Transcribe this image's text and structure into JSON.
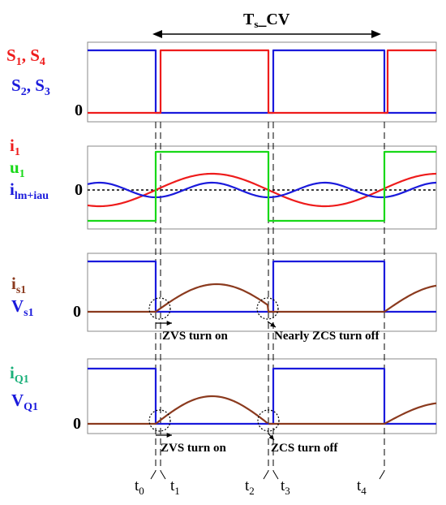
{
  "title": {
    "main": "T",
    "sub": "s",
    "rest": "_CV"
  },
  "colors": {
    "red": "#ee1c1c",
    "blue": "#1a1adc",
    "green": "#18d818",
    "brown": "#8b3a1e",
    "teal": "#1bb07a",
    "black": "#000000",
    "axis": "#555555"
  },
  "panels": [
    {
      "id": "switch-gates",
      "labels": [
        {
          "parts": [
            {
              "t": "S"
            },
            {
              "t": "1",
              "sub": true
            },
            {
              "t": ", S"
            },
            {
              "t": "4",
              "sub": true
            }
          ],
          "color": "red"
        },
        {
          "parts": [
            {
              "t": "S"
            },
            {
              "t": "2",
              "sub": true
            },
            {
              "t": ", S"
            },
            {
              "t": "3",
              "sub": true
            }
          ],
          "color": "blue"
        }
      ],
      "zero_label": "0"
    },
    {
      "id": "currents",
      "labels": [
        {
          "parts": [
            {
              "t": "i"
            },
            {
              "t": "1",
              "sub": true
            }
          ],
          "color": "red"
        },
        {
          "parts": [
            {
              "t": "u"
            },
            {
              "t": "1",
              "sub": true
            }
          ],
          "color": "green"
        },
        {
          "parts": [
            {
              "t": "i"
            },
            {
              "t": "lm",
              "sub": true
            },
            {
              "t": "+",
              "sub": true
            },
            {
              "t": "i",
              "sub": true
            },
            {
              "t": "au",
              "sub": true
            }
          ],
          "color": "blue"
        }
      ],
      "zero_label": "0"
    },
    {
      "id": "secondary",
      "labels": [
        {
          "parts": [
            {
              "t": "i"
            },
            {
              "t": "s1",
              "sub": true
            }
          ],
          "color": "brown"
        },
        {
          "parts": [
            {
              "t": "V"
            },
            {
              "t": "s1",
              "sub": true
            }
          ],
          "color": "blue"
        }
      ],
      "zero_label": "0",
      "annotations": [
        "ZVS turn on",
        "Nearly ZCS turn off"
      ]
    },
    {
      "id": "q1",
      "labels": [
        {
          "parts": [
            {
              "t": "i"
            },
            {
              "t": "Q1",
              "sub": true
            }
          ],
          "color": "teal"
        },
        {
          "parts": [
            {
              "t": "V"
            },
            {
              "t": "Q1",
              "sub": true
            }
          ],
          "color": "blue"
        }
      ],
      "zero_label": "0",
      "annotations": [
        "ZVS turn on",
        "ZCS turn off"
      ]
    }
  ],
  "time_labels": [
    {
      "main": "t",
      "sub": "0"
    },
    {
      "main": "t",
      "sub": "1"
    },
    {
      "main": "t",
      "sub": "2"
    },
    {
      "main": "t",
      "sub": "3"
    },
    {
      "main": "t",
      "sub": "4"
    }
  ]
}
